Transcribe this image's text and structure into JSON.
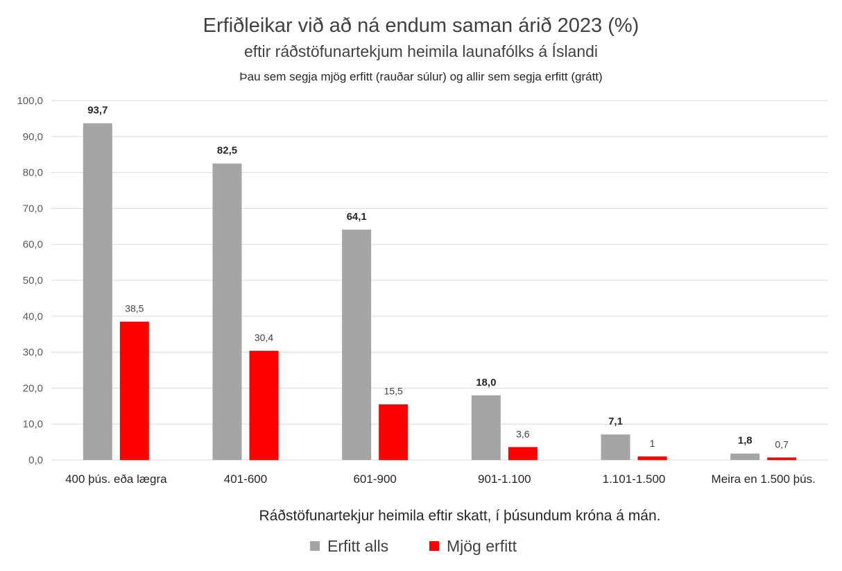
{
  "chart_data": {
    "type": "bar",
    "title": "Erfiðleikar við að ná endum saman árið 2023 (%)",
    "subtitle": "eftir ráðstöfunartekjum heimila launafólks á Íslandi",
    "note": "Þau sem segja mjög erfitt (rauðar súlur) og allir sem segja erfitt (grátt)",
    "xlabel": "Ráðstöfunartekjur heimila eftir skatt, í þúsundum króna á mán.",
    "ylabel": "",
    "ylim": [
      0,
      100
    ],
    "yticks": [
      "0,0",
      "10,0",
      "20,0",
      "30,0",
      "40,0",
      "50,0",
      "60,0",
      "70,0",
      "80,0",
      "90,0",
      "100,0"
    ],
    "categories": [
      "400 þús. eða lægra",
      "401-600",
      "601-900",
      "901-1.100",
      "1.101-1.500",
      "Meira en 1.500 þús."
    ],
    "series": [
      {
        "name": "Erfitt  alls",
        "color": "#a5a5a5",
        "values": [
          93.7,
          82.5,
          64.1,
          18.0,
          7.1,
          1.8
        ],
        "labels": [
          "93,7",
          "82,5",
          "64,1",
          "18,0",
          "7,1",
          "1,8"
        ]
      },
      {
        "name": "Mjög  erfitt",
        "color": "#ff0000",
        "values": [
          38.5,
          30.4,
          15.5,
          3.6,
          1,
          0.7
        ],
        "labels": [
          "38,5",
          "30,4",
          "15,5",
          "3,6",
          "1",
          "0,7"
        ]
      }
    ],
    "grid": true,
    "legend": "bottom"
  }
}
